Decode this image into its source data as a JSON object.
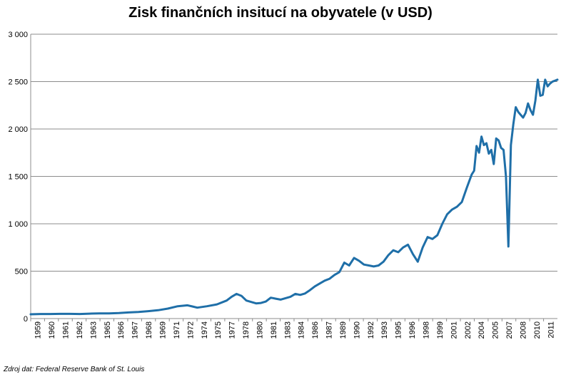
{
  "title": "Zisk finančních insitucí na obyvatele (v USD)",
  "source": "Zdroj dat: Federal Reserve Bank of St. Louis",
  "colors": {
    "line": "#1f6fa8",
    "grid": "#8c8c8c",
    "axis": "#8c8c8c"
  },
  "chart_data": {
    "type": "line",
    "title": "Zisk finančních insitucí na obyvatele (v USD)",
    "xlabel": "",
    "ylabel": "",
    "ylim": [
      0,
      3000
    ],
    "yticks": [
      0,
      500,
      1000,
      1500,
      2000,
      2500,
      3000
    ],
    "ytick_labels": [
      "0",
      "500",
      "1 000",
      "1 500",
      "2 000",
      "2 500",
      "3 000"
    ],
    "xlim": [
      1959.0,
      2012.75
    ],
    "xtick_labels": [
      "1959",
      "1960",
      "1961",
      "1962",
      "1963",
      "1965",
      "1966",
      "1967",
      "1968",
      "1969",
      "1971",
      "1972",
      "1974",
      "1975",
      "1977",
      "1978",
      "1980",
      "1981",
      "1983",
      "1984",
      "1986",
      "1987",
      "1989",
      "1990",
      "1992",
      "1993",
      "1995",
      "1996",
      "1998",
      "1999",
      "2001",
      "2002",
      "2004",
      "2005",
      "2007",
      "2008",
      "2010",
      "2011"
    ],
    "grid": true,
    "legend": "none",
    "series": [
      {
        "x": [
          1959.0,
          1960.0,
          1961.0,
          1962.0,
          1963.0,
          1964.0,
          1965.0,
          1966.0,
          1967.0,
          1968.0,
          1969.0,
          1970.0,
          1971.0,
          1972.0,
          1973.0,
          1974.0,
          1975.0,
          1975.5,
          1976.0,
          1977.0,
          1978.0,
          1979.0,
          1979.5,
          1980.0,
          1980.5,
          1981.0,
          1981.5,
          1982.0,
          1982.5,
          1983.0,
          1983.5,
          1984.0,
          1984.5,
          1985.0,
          1985.5,
          1986.0,
          1986.5,
          1987.0,
          1987.5,
          1988.0,
          1988.5,
          1989.0,
          1989.5,
          1990.0,
          1990.5,
          1991.0,
          1991.5,
          1992.0,
          1992.5,
          1993.0,
          1993.5,
          1994.0,
          1994.5,
          1995.0,
          1995.5,
          1996.0,
          1996.5,
          1997.0,
          1997.5,
          1998.0,
          1998.5,
          1999.0,
          1999.5,
          2000.0,
          2000.5,
          2001.0,
          2001.5,
          2002.0,
          2002.5,
          2003.0,
          2003.5,
          2004.0,
          2004.25,
          2004.5,
          2004.75,
          2005.0,
          2005.25,
          2005.5,
          2005.75,
          2006.0,
          2006.25,
          2006.5,
          2006.75,
          2007.0,
          2007.25,
          2007.5,
          2007.75,
          2008.0,
          2008.25,
          2008.5,
          2008.75,
          2009.0,
          2009.25,
          2009.5,
          2009.75,
          2010.0,
          2010.25,
          2010.5,
          2010.75,
          2011.0,
          2011.25,
          2011.5,
          2011.75,
          2012.0,
          2012.25,
          2012.5,
          2012.75
        ],
        "y": [
          45,
          48,
          48,
          50,
          50,
          48,
          52,
          55,
          55,
          58,
          65,
          70,
          78,
          88,
          105,
          130,
          140,
          128,
          115,
          130,
          150,
          190,
          230,
          260,
          240,
          190,
          175,
          160,
          165,
          180,
          220,
          210,
          200,
          215,
          230,
          260,
          250,
          265,
          300,
          340,
          370,
          400,
          420,
          460,
          490,
          590,
          560,
          640,
          610,
          570,
          560,
          550,
          560,
          600,
          670,
          720,
          700,
          750,
          780,
          680,
          600,
          750,
          860,
          840,
          880,
          1000,
          1100,
          1150,
          1180,
          1230,
          1380,
          1520,
          1560,
          1820,
          1750,
          1920,
          1830,
          1850,
          1740,
          1780,
          1630,
          1900,
          1880,
          1800,
          1780,
          1500,
          760,
          1830,
          2050,
          2230,
          2180,
          2150,
          2120,
          2170,
          2270,
          2200,
          2150,
          2300,
          2520,
          2350,
          2360,
          2520,
          2450,
          2480,
          2500,
          2510,
          2520
        ]
      }
    ]
  }
}
